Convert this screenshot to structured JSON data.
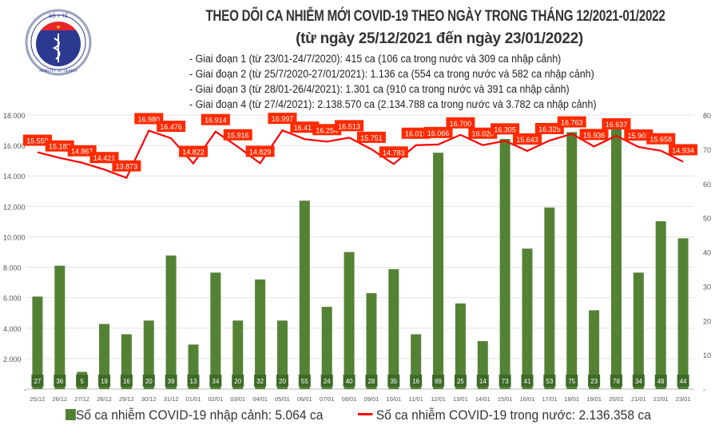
{
  "logo": {
    "top_text": "BỘ Y TẾ",
    "bottom_text": "MINISTRY OF HEALTH"
  },
  "title": "THEO DÕI CA NHIỄM MỚI COVID-19 THEO NGÀY TRONG THÁNG 12/2021-01/2022",
  "subtitle": "(từ ngày 25/12/2021 đến ngày 23/01/2022)",
  "notes": [
    "- Giai đoạn 1 (từ 23/01-24/7/2020): 415 ca (106 ca trong nước và 309 ca nhập cảnh)",
    "- Giai đoạn 2 (từ 25/7/2020-27/01/2021): 1.136 ca (554 ca trong nước và 582 ca nhập cảnh)",
    "- Giai đoạn 3 (từ 28/01-26/4/2021): 1.301 ca (910 ca trong nước và 391 ca nhập cảnh)",
    "- Giai đoạn 4 (từ 27/4/2021): 2.138.570 ca (2.134.788 ca trong nước và 3.782 ca nhập cảnh)"
  ],
  "chart_data": {
    "type": "bar+line",
    "categories": [
      "25/12",
      "26/12",
      "27/12",
      "28/12",
      "29/12",
      "30/12",
      "31/12",
      "01/01",
      "02/01",
      "03/01",
      "04/01",
      "05/01",
      "06/01",
      "07/01",
      "08/01",
      "09/01",
      "10/01",
      "11/01",
      "12/01",
      "13/01",
      "14/01",
      "15/01",
      "16/01",
      "17/01",
      "18/01",
      "19/01",
      "20/01",
      "21/01",
      "22/01",
      "23/01"
    ],
    "series": [
      {
        "name": "Số ca nhiễm COVID-19 nhập cảnh: 5.064 ca",
        "type": "bar",
        "axis": "right",
        "color": "#548235",
        "values": [
          27,
          36,
          5,
          19,
          16,
          20,
          39,
          13,
          34,
          20,
          32,
          20,
          55,
          24,
          40,
          28,
          35,
          16,
          69,
          25,
          14,
          73,
          41,
          53,
          75,
          23,
          78,
          34,
          49,
          44
        ]
      },
      {
        "name": "Số ca nhiễm COVID-19 trong nước: 2.136.358 ca",
        "type": "line",
        "axis": "left",
        "color": "#ff0000",
        "values": [
          15559,
          15182,
          14867,
          14421,
          13873,
          16980,
          16476,
          14822,
          16914,
          15916,
          14829,
          16997,
          16417,
          16254,
          16513,
          15751,
          14783,
          16019,
          16066,
          16700,
          16020,
          16305,
          15643,
          16325,
          16763,
          15936,
          16637,
          15901,
          15658,
          14934
        ]
      }
    ],
    "left_axis": {
      "range": [
        0,
        18000
      ],
      "ticks": [
        "-",
        "2.000",
        "4.000",
        "6.000",
        "8.000",
        "10.000",
        "12.000",
        "14.000",
        "16.000",
        "18.000"
      ]
    },
    "right_axis": {
      "range": [
        0,
        80
      ],
      "ticks": [
        "-",
        "10",
        "20",
        "30",
        "40",
        "50",
        "60",
        "70",
        "80"
      ]
    },
    "grid": true,
    "legend": "bottom"
  },
  "legend": {
    "bar_label": "Số ca nhiễm COVID-19 nhập cảnh: 5.064 ca",
    "line_label": "Số ca nhiễm COVID-19 trong nước: 2.136.358 ca"
  }
}
